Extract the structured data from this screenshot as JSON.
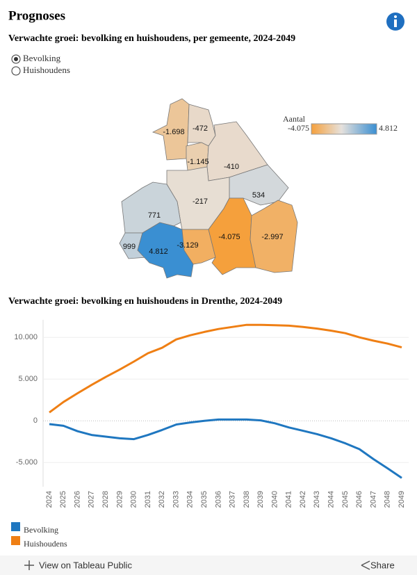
{
  "title": "Prognoses",
  "map": {
    "title": "Verwachte groei: bevolking en huishoudens, per gemeente, 2024-2049",
    "options": [
      "Bevolking",
      "Huishoudens"
    ],
    "selected": 0,
    "legend_title": "Aantal",
    "legend_range": [
      {
        "value": -4075,
        "label": "-4.075"
      },
      {
        "value": 4812,
        "label": "4.812"
      }
    ],
    "colors": [
      "#f5a03c",
      "#e6e1dc",
      "#3a8fd2"
    ],
    "values": [
      -1698,
      -472,
      -1145,
      -410,
      534,
      -217,
      771,
      999,
      4812,
      -3129,
      -4075,
      -2997
    ],
    "value_labels": [
      "-1.698",
      "-472",
      "-1.145",
      "-410",
      "534",
      "-217",
      "771",
      "999",
      "4.812",
      "-3.129",
      "-4.075",
      "-2.997"
    ]
  },
  "chart_data": {
    "type": "line",
    "title": "Verwachte groei: bevolking en huishoudens in Drenthe, 2024-2049",
    "x": [
      2024,
      2025,
      2026,
      2027,
      2028,
      2029,
      2030,
      2031,
      2032,
      2033,
      2034,
      2035,
      2036,
      2037,
      2038,
      2039,
      2040,
      2041,
      2042,
      2043,
      2044,
      2045,
      2046,
      2047,
      2048,
      2049
    ],
    "series": [
      {
        "name": "Bevolking",
        "color": "#1f77c0",
        "values": [
          -400,
          -600,
          -1250,
          -1700,
          -1900,
          -2100,
          -2200,
          -1700,
          -1100,
          -450,
          -200,
          0,
          150,
          150,
          150,
          50,
          -300,
          -800,
          -1200,
          -1600,
          -2100,
          -2700,
          -3400,
          -4600,
          -5700,
          -6850
        ]
      },
      {
        "name": "Huishoudens",
        "color": "#ef7f14",
        "values": [
          1000,
          2250,
          3300,
          4300,
          5250,
          6150,
          7100,
          8100,
          8750,
          9750,
          10250,
          10650,
          11000,
          11250,
          11500,
          11500,
          11450,
          11400,
          11250,
          11050,
          10800,
          10500,
          10000,
          9600,
          9250,
          8800
        ]
      }
    ],
    "ylim": [
      -7900,
      12100
    ],
    "yticks": [
      {
        "value": -5000,
        "label": "-5.000"
      },
      0,
      {
        "value": 5000,
        "label": "5.000"
      },
      {
        "value": 10000,
        "label": "10.000"
      }
    ],
    "grid": true
  },
  "toolbar": {
    "view": "View on Tableau Public",
    "share": "Share"
  }
}
